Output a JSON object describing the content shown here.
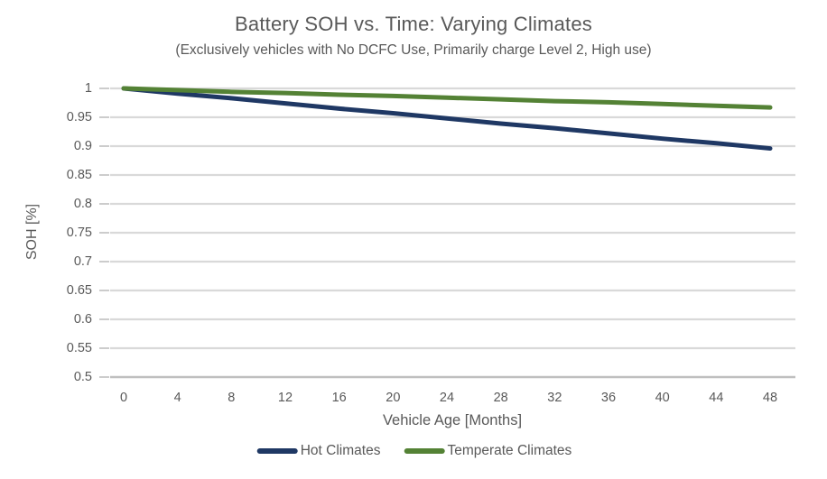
{
  "chart_data": {
    "type": "line",
    "title": "Battery SOH vs. Time: Varying Climates",
    "subtitle": "(Exclusively vehicles with No DCFC Use, Primarily charge Level 2, High use)",
    "xlabel": "Vehicle Age [Months]",
    "ylabel": "SOH [%]",
    "x": [
      0,
      4,
      8,
      12,
      16,
      20,
      24,
      28,
      32,
      36,
      40,
      44,
      48
    ],
    "x_tick_labels": [
      "0",
      "4",
      "8",
      "12",
      "16",
      "20",
      "24",
      "28",
      "32",
      "36",
      "40",
      "44",
      "48"
    ],
    "y_ticks": [
      1,
      0.95,
      0.9,
      0.85,
      0.8,
      0.75,
      0.7,
      0.65,
      0.6,
      0.55,
      0.5
    ],
    "y_tick_labels": [
      "1",
      "0.95",
      "0.9",
      "0.85",
      "0.8",
      "0.75",
      "0.7",
      "0.65",
      "0.6",
      "0.55",
      "0.5"
    ],
    "xlim": [
      0,
      48
    ],
    "ylim": [
      0.5,
      1
    ],
    "grid": true,
    "legend_position": "bottom",
    "series": [
      {
        "name": "Hot Climates",
        "color": "#1F3864",
        "values": [
          1.0,
          0.991,
          0.983,
          0.974,
          0.965,
          0.957,
          0.948,
          0.939,
          0.931,
          0.922,
          0.913,
          0.905,
          0.896
        ]
      },
      {
        "name": "Temperate Climates",
        "color": "#548235",
        "values": [
          1.0,
          0.997,
          0.994,
          0.992,
          0.989,
          0.987,
          0.984,
          0.981,
          0.978,
          0.976,
          0.973,
          0.97,
          0.967
        ]
      }
    ]
  },
  "colors": {
    "text": "#595959",
    "tick_text": "#595959",
    "gridline": "#D9D9D9",
    "axis_line": "#BFBFBF",
    "background": "#FFFFFF"
  }
}
